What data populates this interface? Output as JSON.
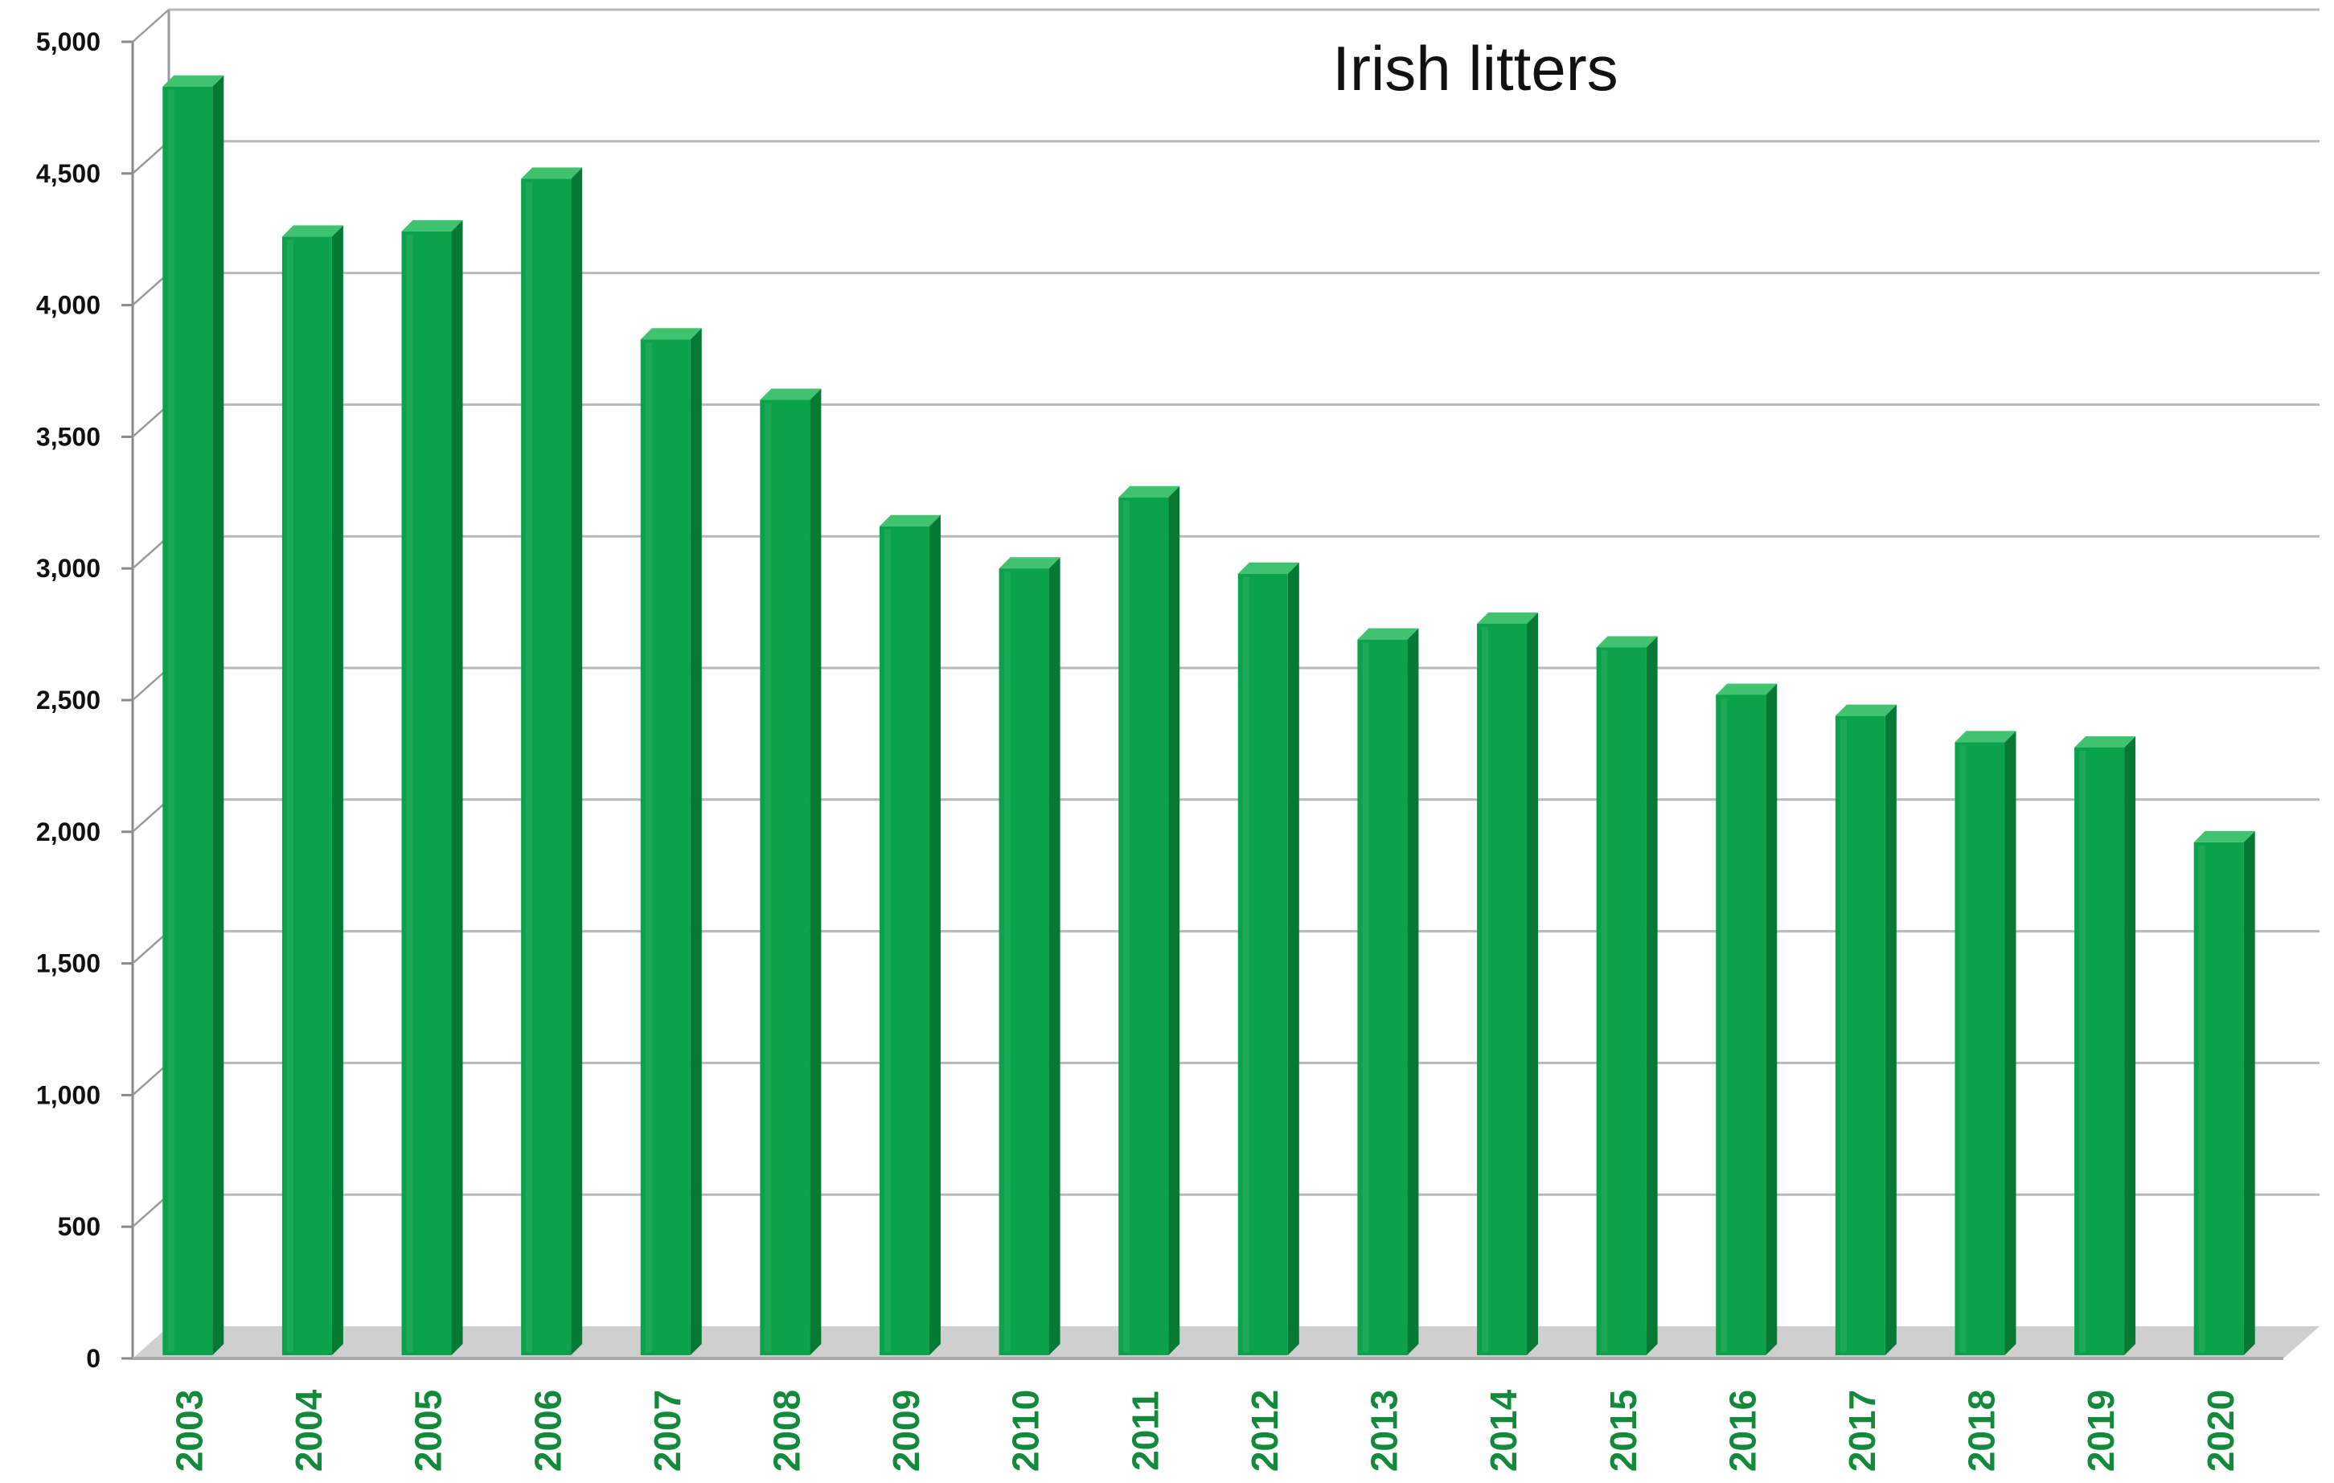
{
  "chart_data": {
    "type": "bar",
    "title": "Irish litters",
    "xlabel": "",
    "ylabel": "",
    "categories": [
      "2003",
      "2004",
      "2005",
      "2006",
      "2007",
      "2008",
      "2009",
      "2010",
      "2011",
      "2012",
      "2013",
      "2014",
      "2015",
      "2016",
      "2017",
      "2018",
      "2019",
      "2020"
    ],
    "values": [
      4830,
      4260,
      4280,
      4480,
      3870,
      3640,
      3160,
      3000,
      3270,
      2980,
      2730,
      2790,
      2700,
      2520,
      2440,
      2340,
      2320,
      1960
    ],
    "ylim": [
      0,
      5000
    ],
    "yticks": [
      0,
      500,
      1000,
      1500,
      2000,
      2500,
      3000,
      3500,
      4000,
      4500,
      5000
    ],
    "ytick_labels": [
      "0",
      "500",
      "1,000",
      "1,500",
      "2,000",
      "2,500",
      "3,000",
      "3,500",
      "4,000",
      "4,500",
      "5,000"
    ],
    "grid": true,
    "bar_style": "3d-column",
    "colors": {
      "bar_front": "#0aa24a",
      "bar_side": "#067a34",
      "bar_top": "#3fc36e",
      "xtick_text": "#138a3b",
      "gridline": "#b8b8b8",
      "floor": "#a9a9a9"
    }
  }
}
